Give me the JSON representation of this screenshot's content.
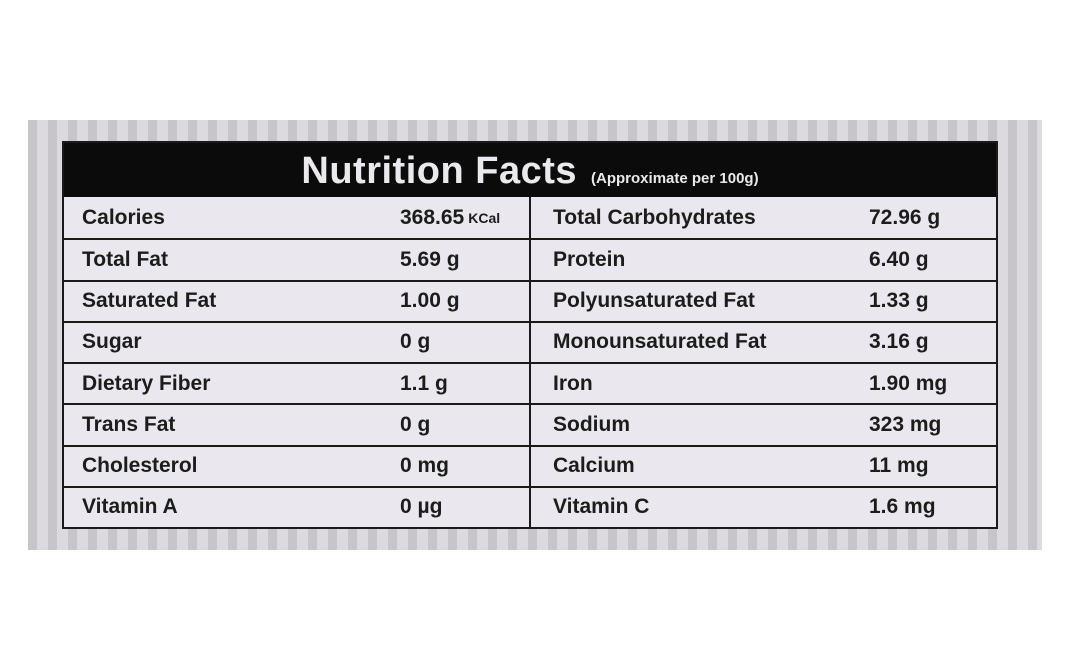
{
  "title": "Nutrition Facts",
  "subtitle": "(Approximate per 100g)",
  "left_rows": [
    {
      "label": "Calories",
      "value": "368.65",
      "unit": "KCal"
    },
    {
      "label": "Total Fat",
      "value": "5.69 g",
      "unit": ""
    },
    {
      "label": "Saturated Fat",
      "value": "1.00 g",
      "unit": ""
    },
    {
      "label": "Sugar",
      "value": "0 g",
      "unit": ""
    },
    {
      "label": "Dietary Fiber",
      "value": "1.1 g",
      "unit": ""
    },
    {
      "label": "Trans Fat",
      "value": "0 g",
      "unit": ""
    },
    {
      "label": "Cholesterol",
      "value": "0 mg",
      "unit": ""
    },
    {
      "label": "Vitamin A",
      "value": "0 µg",
      "unit": ""
    }
  ],
  "right_rows": [
    {
      "label": "Total Carbohydrates",
      "value": "72.96 g"
    },
    {
      "label": "Protein",
      "value": "6.40 g"
    },
    {
      "label": "Polyunsaturated Fat",
      "value": "1.33 g"
    },
    {
      "label": "Monounsaturated Fat",
      "value": "3.16 g"
    },
    {
      "label": "Iron",
      "value": "1.90 mg"
    },
    {
      "label": "Sodium",
      "value": "323 mg"
    },
    {
      "label": "Calcium",
      "value": "11 mg"
    },
    {
      "label": "Vitamin C",
      "value": "1.6 mg"
    }
  ],
  "colors": {
    "header_bg": "#0b0b0b",
    "card_bg": "#eae8ee",
    "stripe_dark": "#c7c5ca",
    "stripe_light": "#dcdadf"
  }
}
